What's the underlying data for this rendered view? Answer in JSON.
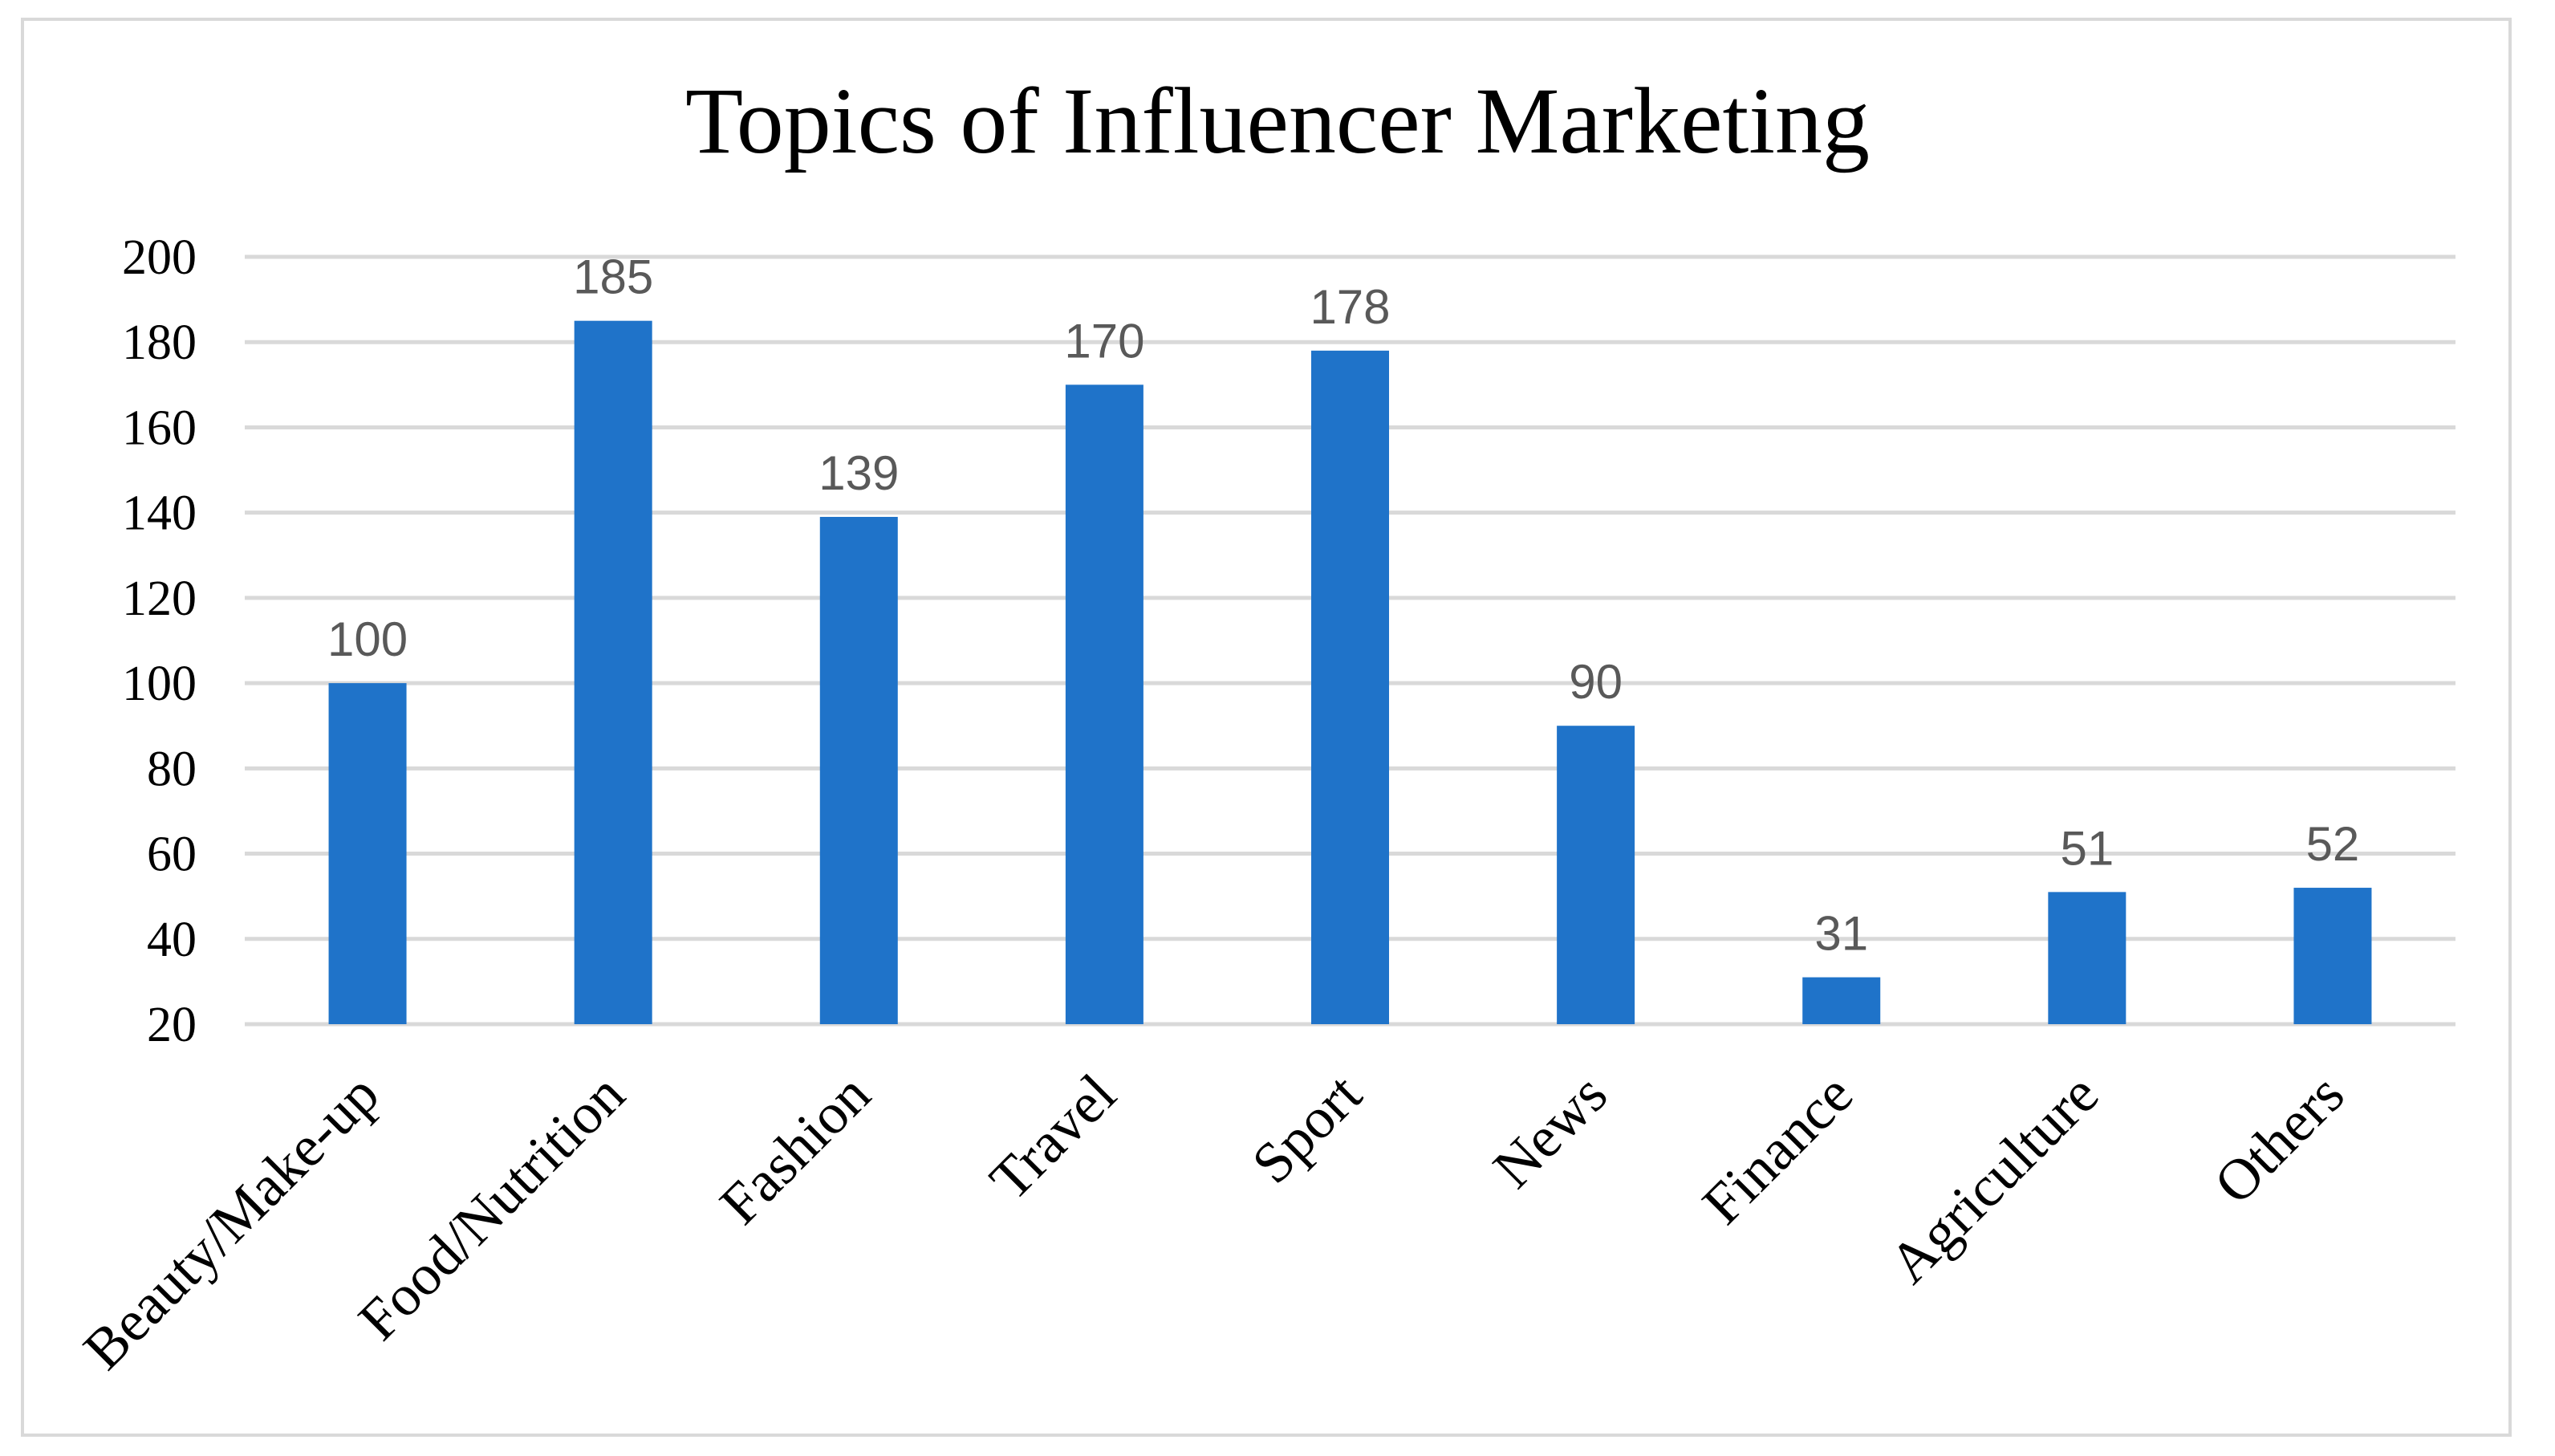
{
  "chart_data": {
    "type": "bar",
    "title": "Topics of Influencer Marketing",
    "xlabel": "",
    "ylabel": "",
    "categories": [
      "Beauty/Make-up",
      "Food/Nutrition",
      "Fashion",
      "Travel",
      "Sport",
      "News",
      "Finance",
      "Agriculture",
      "Others"
    ],
    "values": [
      100,
      185,
      139,
      170,
      178,
      90,
      31,
      51,
      52
    ],
    "ylim": [
      20,
      200
    ],
    "yticks": [
      "20",
      "40",
      "60",
      "80",
      "100",
      "120",
      "140",
      "160",
      "180",
      "200"
    ],
    "data_labels": [
      "100",
      "185",
      "139",
      "170",
      "178",
      "90",
      "31",
      "51",
      "52"
    ],
    "grid": true,
    "legend": "none",
    "colors": {
      "bar": "#1f73c9",
      "gridline": "#d9d9d9",
      "data_label": "#595959",
      "frame": "#d9d9d9"
    }
  }
}
